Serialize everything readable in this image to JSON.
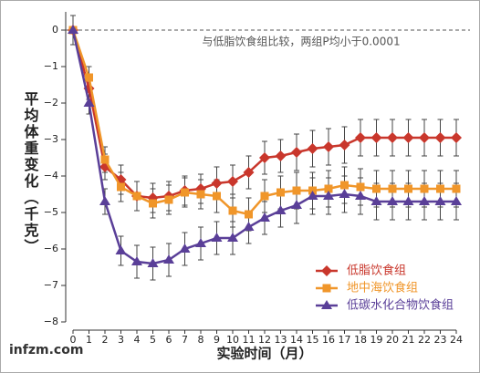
{
  "chart_data": {
    "type": "line",
    "annotation": "与低脂饮食组比较，两组P均小于0.0001",
    "ylabel": "平均体重变化（千克）",
    "xlabel": "实验时间（月）",
    "watermark": "infzm.com",
    "x": [
      0,
      1,
      2,
      3,
      4,
      5,
      6,
      7,
      8,
      9,
      10,
      11,
      12,
      13,
      14,
      15,
      16,
      17,
      18,
      19,
      20,
      21,
      22,
      23,
      24
    ],
    "xlim": [
      0,
      24
    ],
    "xticks": [
      0,
      1,
      2,
      3,
      4,
      5,
      6,
      7,
      8,
      9,
      10,
      11,
      12,
      13,
      14,
      15,
      16,
      17,
      18,
      19,
      20,
      21,
      22,
      23,
      24
    ],
    "ylim": [
      -8,
      0.5
    ],
    "yticks": [
      {
        "value": -8,
        "label": "−8"
      },
      {
        "value": -7,
        "label": "−7"
      },
      {
        "value": -6,
        "label": "−6"
      },
      {
        "value": -5,
        "label": "−5"
      },
      {
        "value": -4,
        "label": "−4"
      },
      {
        "value": -3,
        "label": "−3"
      },
      {
        "value": -2,
        "label": "−2"
      },
      {
        "value": -1,
        "label": "−1"
      },
      0
    ],
    "zero_line": true,
    "legend": "lower right",
    "series": [
      {
        "name": "低脂饮食组",
        "color": "#c9372c",
        "marker": "diamond",
        "values": [
          0,
          -1.6,
          -3.75,
          -4.1,
          -4.55,
          -4.6,
          -4.55,
          -4.4,
          -4.35,
          -4.2,
          -4.15,
          -3.9,
          -3.5,
          -3.45,
          -3.35,
          -3.25,
          -3.2,
          -3.15,
          -2.95,
          -2.95,
          -2.95,
          -2.95,
          -2.95,
          -2.95,
          -2.95
        ],
        "errors": [
          0.4,
          0.3,
          0.35,
          0.4,
          0.4,
          0.4,
          0.4,
          0.4,
          0.4,
          0.45,
          0.45,
          0.45,
          0.45,
          0.45,
          0.5,
          0.5,
          0.5,
          0.5,
          0.5,
          0.5,
          0.5,
          0.5,
          0.5,
          0.5,
          0.5
        ]
      },
      {
        "name": "地中海饮食组",
        "color": "#f0962a",
        "marker": "square",
        "values": [
          0,
          -1.3,
          -3.55,
          -4.3,
          -4.55,
          -4.75,
          -4.65,
          -4.45,
          -4.5,
          -4.55,
          -4.95,
          -5.05,
          -4.55,
          -4.45,
          -4.4,
          -4.4,
          -4.35,
          -4.25,
          -4.3,
          -4.35,
          -4.35,
          -4.35,
          -4.35,
          -4.35,
          -4.35
        ],
        "errors": [
          0.4,
          0.3,
          0.35,
          0.4,
          0.4,
          0.4,
          0.4,
          0.4,
          0.4,
          0.45,
          0.45,
          0.45,
          0.45,
          0.45,
          0.5,
          0.5,
          0.5,
          0.5,
          0.5,
          0.5,
          0.5,
          0.5,
          0.5,
          0.5,
          0.5
        ]
      },
      {
        "name": "低碳水化合物饮食组",
        "color": "#5a3f98",
        "marker": "triangle",
        "values": [
          0,
          -2.0,
          -4.7,
          -6.05,
          -6.35,
          -6.4,
          -6.3,
          -6.0,
          -5.85,
          -5.7,
          -5.7,
          -5.4,
          -5.15,
          -4.95,
          -4.8,
          -4.55,
          -4.55,
          -4.5,
          -4.55,
          -4.7,
          -4.7,
          -4.7,
          -4.7,
          -4.7,
          -4.7
        ],
        "errors": [
          0.4,
          0.3,
          0.35,
          0.4,
          0.45,
          0.45,
          0.45,
          0.45,
          0.45,
          0.45,
          0.45,
          0.45,
          0.45,
          0.45,
          0.5,
          0.5,
          0.5,
          0.5,
          0.5,
          0.5,
          0.5,
          0.5,
          0.5,
          0.5,
          0.5
        ]
      }
    ]
  }
}
